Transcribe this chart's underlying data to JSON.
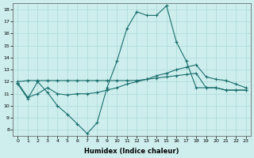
{
  "xlabel": "Humidex (Indice chaleur)",
  "background_color": "#cdeeed",
  "line_color": "#1a6e6e",
  "grid_color": "#aed8d8",
  "x": [
    0,
    1,
    2,
    3,
    4,
    5,
    6,
    7,
    8,
    9,
    10,
    11,
    12,
    13,
    14,
    15,
    16,
    17,
    18,
    19,
    20,
    21,
    22,
    23
  ],
  "line1": [
    11.8,
    10.6,
    12.0,
    11.1,
    10.0,
    9.3,
    8.5,
    7.7,
    8.6,
    11.5,
    13.7,
    16.4,
    17.8,
    17.5,
    17.5,
    18.3,
    15.3,
    13.7,
    11.5,
    11.5,
    11.5,
    11.3,
    11.3,
    11.3
  ],
  "line2": [
    11.9,
    10.7,
    11.0,
    11.5,
    11.0,
    10.9,
    11.0,
    11.0,
    11.1,
    11.3,
    11.5,
    11.8,
    12.0,
    12.2,
    12.5,
    12.7,
    13.0,
    13.2,
    13.4,
    12.4,
    12.2,
    12.1,
    11.8,
    11.5
  ],
  "line3": [
    12.0,
    12.1,
    12.1,
    12.1,
    12.1,
    12.1,
    12.1,
    12.1,
    12.1,
    12.1,
    12.1,
    12.1,
    12.1,
    12.2,
    12.3,
    12.4,
    12.5,
    12.6,
    12.7,
    11.5,
    11.5,
    11.3,
    11.3,
    11.3
  ],
  "xlim": [
    -0.5,
    23.5
  ],
  "ylim": [
    7.5,
    18.5
  ],
  "yticks": [
    8,
    9,
    10,
    11,
    12,
    13,
    14,
    15,
    16,
    17,
    18
  ],
  "xticks": [
    0,
    1,
    2,
    3,
    4,
    5,
    6,
    7,
    8,
    9,
    10,
    11,
    12,
    13,
    14,
    15,
    16,
    17,
    18,
    19,
    20,
    21,
    22,
    23
  ]
}
